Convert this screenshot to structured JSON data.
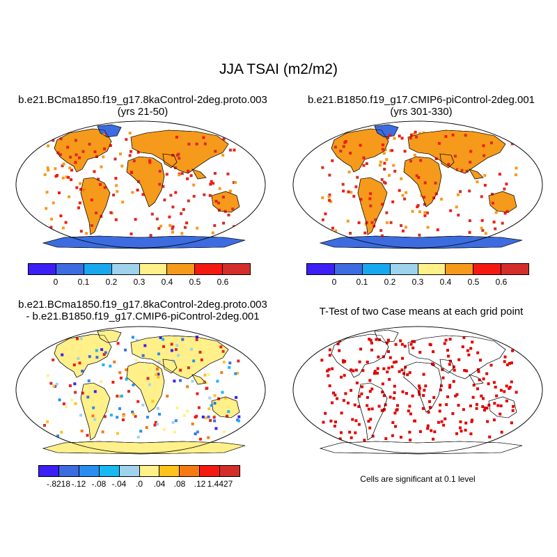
{
  "figure": {
    "title": "JJA TSAI (m2/m2)"
  },
  "panels": [
    {
      "title_line1": "b.e21.BCma1850.f19_g17.8kaControl-2deg.proto.003",
      "title_line2": "(yrs 21-50)",
      "land_fill": "#f59a1a",
      "ocean_fill": "#ffffff",
      "colorbar": {
        "colors": [
          "#3b1ff5",
          "#3c6ce0",
          "#18a8f0",
          "#9ed3ee",
          "#fff08a",
          "#f59a1a",
          "#f41a12",
          "#d42e2a"
        ],
        "tick_labels": [
          "0",
          "0.1",
          "0.2",
          "0.3",
          "0.4",
          "0.5",
          "0.6"
        ]
      }
    },
    {
      "title_line1": "b.e21.B1850.f19_g17.CMIP6-piControl-2deg.001",
      "title_line2": "(yrs 301-330)",
      "land_fill": "#f59a1a",
      "ocean_fill": "#ffffff",
      "colorbar": {
        "colors": [
          "#3b1ff5",
          "#3c6ce0",
          "#18a8f0",
          "#9ed3ee",
          "#fff08a",
          "#f59a1a",
          "#f41a12",
          "#d42e2a"
        ],
        "tick_labels": [
          "0",
          "0.1",
          "0.2",
          "0.3",
          "0.4",
          "0.5",
          "0.6"
        ]
      }
    },
    {
      "title_line1": "b.e21.BCma1850.f19_g17.8kaControl-2deg.proto.003",
      "title_line2": "- b.e21.B1850.f19_g17.CMIP6-piControl-2deg.001",
      "land_fill": "#fff08a",
      "ocean_fill": "#ffffff",
      "colorbar": {
        "colors": [
          "#3b1ff5",
          "#3c6ce0",
          "#2a8ef0",
          "#18b8f2",
          "#9ed3ee",
          "#fff08a",
          "#ffc21a",
          "#f57a12",
          "#f41a12",
          "#d42e2a"
        ],
        "tick_labels": [
          "-.8218",
          "-.12",
          "-.08",
          "-.04",
          ".0",
          ".04",
          ".08",
          ".12",
          "1.4427"
        ]
      }
    },
    {
      "title_line1": "T-Test of two Case means at each grid point",
      "title_line2": "",
      "land_fill": "#ffffff",
      "ocean_fill": "#ffffff",
      "significance_color": "#e00000",
      "note": "Cells are significant at 0.1 level"
    }
  ]
}
